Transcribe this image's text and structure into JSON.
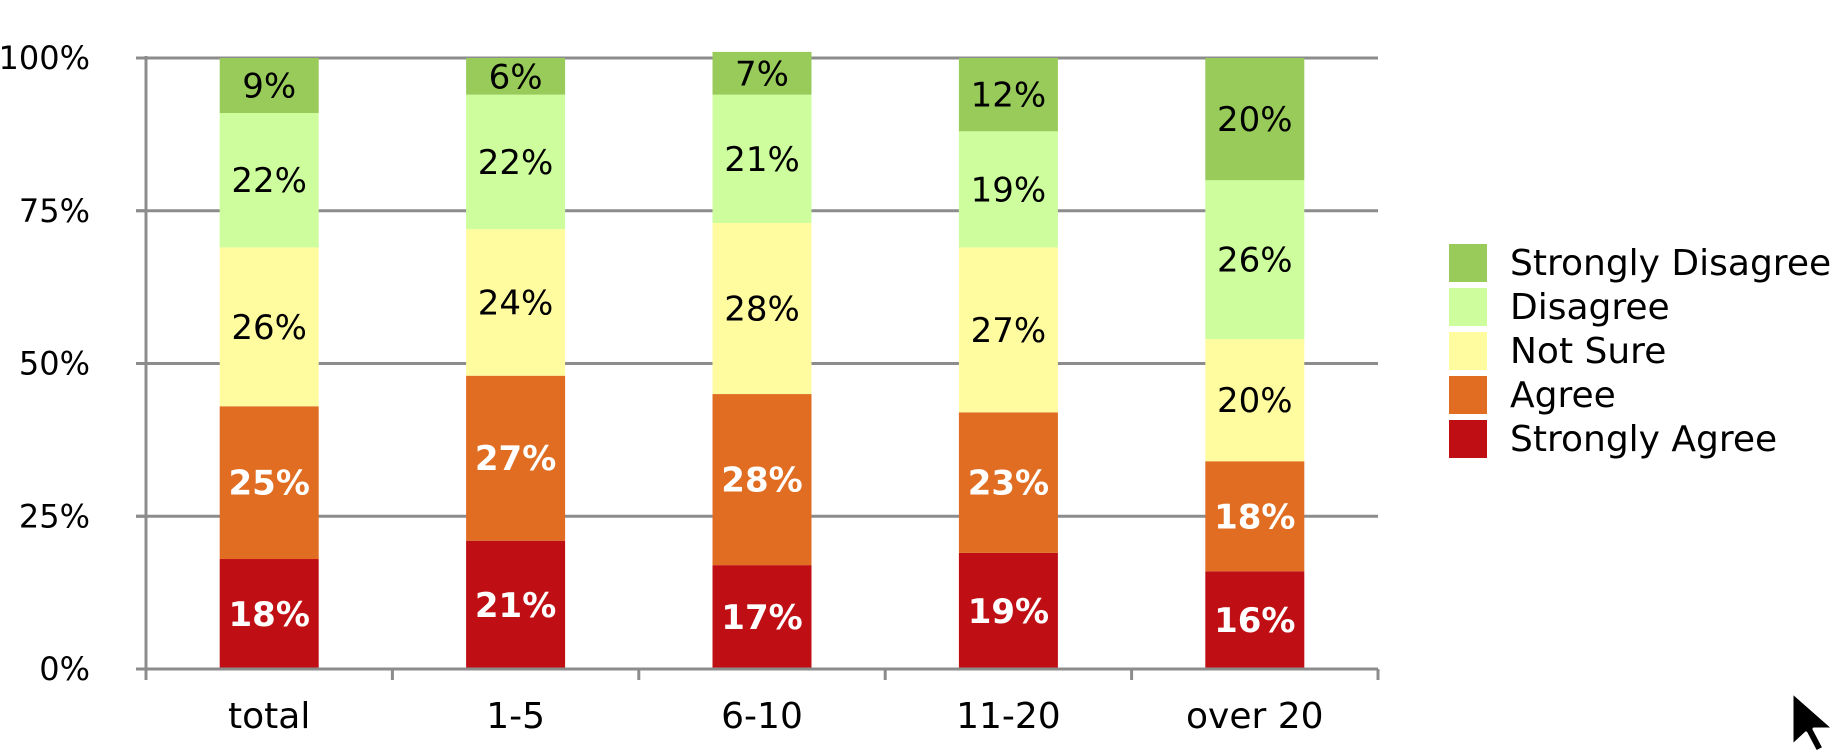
{
  "chart_data": {
    "type": "bar",
    "stacked": true,
    "percent": true,
    "categories": [
      "total",
      "1-5",
      "6-10",
      "11-20",
      "over 20"
    ],
    "series": [
      {
        "name": "Strongly Agree",
        "color": "#c00f14",
        "label_color": "#ffffff",
        "values": [
          18,
          21,
          17,
          19,
          16
        ]
      },
      {
        "name": "Agree",
        "color": "#e06d22",
        "label_color": "#ffffff",
        "values": [
          25,
          27,
          28,
          23,
          18
        ]
      },
      {
        "name": "Not Sure",
        "color": "#fffb9f",
        "label_color": "#000000",
        "values": [
          26,
          24,
          28,
          27,
          20
        ]
      },
      {
        "name": "Disagree",
        "color": "#cdfd9d",
        "label_color": "#000000",
        "values": [
          22,
          22,
          21,
          19,
          26
        ]
      },
      {
        "name": "Strongly Disagree",
        "color": "#98cb59",
        "label_color": "#000000",
        "values": [
          9,
          6,
          7,
          12,
          20
        ]
      }
    ],
    "y_ticks": [
      "0%",
      "25%",
      "50%",
      "75%",
      "100%"
    ],
    "ylim": [
      0,
      100
    ],
    "grid": true,
    "legend_position": "right",
    "legend_order": [
      "Strongly Disagree",
      "Disagree",
      "Not Sure",
      "Agree",
      "Strongly Agree"
    ],
    "axis_color": "#8c8c8c"
  },
  "cursor": {
    "icon": "mouse-pointer-icon"
  }
}
